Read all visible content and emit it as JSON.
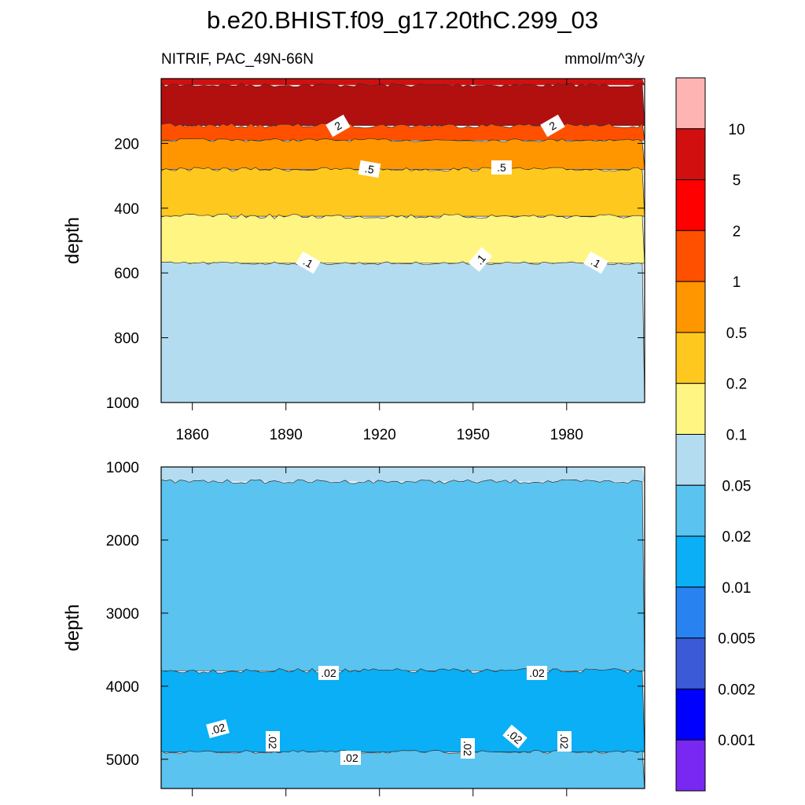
{
  "title": "b.e20.BHIST.f09_g17.20thC.299_03",
  "subtitle_left": "NITRIF, PAC_49N-66N",
  "subtitle_right": "mmol/m^3/y",
  "chart_data": [
    {
      "type": "heatmap",
      "panel": "upper",
      "ylabel": "depth",
      "ylim": [
        1000,
        0
      ],
      "yticks": [
        "200",
        "400",
        "600",
        "800",
        "1000"
      ],
      "xlim": [
        1850,
        2005
      ],
      "xticks": [
        "1860",
        "1890",
        "1920",
        "1950",
        "1980"
      ],
      "contour_levels": [
        {
          "label": "2",
          "depth": 150
        },
        {
          "label": ".5",
          "depth": 280
        },
        {
          "label": ".1",
          "depth": 565
        }
      ],
      "bands": [
        {
          "from": 0,
          "to": 20,
          "color": "#d20f0f",
          "range": "5-10"
        },
        {
          "from": 20,
          "to": 145,
          "color": "#b20f0f",
          "range": "5-10"
        },
        {
          "from": 145,
          "to": 190,
          "color": "#ff5000",
          "range": "1-2"
        },
        {
          "from": 190,
          "to": 280,
          "color": "#ff9600",
          "range": "0.5-1"
        },
        {
          "from": 280,
          "to": 425,
          "color": "#ffc81e",
          "range": "0.2-0.5"
        },
        {
          "from": 425,
          "to": 570,
          "color": "#fff582",
          "range": "0.1-0.2"
        },
        {
          "from": 570,
          "to": 1000,
          "color": "#b4dcf0",
          "range": "0.05-0.1"
        }
      ],
      "contour_labels": [
        "2",
        "2",
        ".5",
        ".5",
        ".1",
        ".1",
        ".1"
      ]
    },
    {
      "type": "heatmap",
      "panel": "lower",
      "ylabel": "depth",
      "ylim": [
        5400,
        1000
      ],
      "yticks": [
        "1000",
        "2000",
        "3000",
        "4000",
        "5000"
      ],
      "xlim": [
        1850,
        2005
      ],
      "bands": [
        {
          "from": 1000,
          "to": 1200,
          "color": "#b4dcf0",
          "range": "0.05-0.1"
        },
        {
          "from": 1200,
          "to": 3790,
          "color": "#5ac3f0",
          "range": "0.02-0.05"
        },
        {
          "from": 3790,
          "to": 4900,
          "color": "#0aaff5",
          "range": "0.01-0.02"
        },
        {
          "from": 4900,
          "to": 5400,
          "color": "#5ac3f0",
          "range": "0.02-0.05"
        }
      ],
      "contour_labels": [
        ".02",
        ".02",
        ".02",
        ".02",
        ".02",
        ".02",
        ".02",
        ".02"
      ]
    }
  ],
  "colorbar": {
    "colors": [
      "#ffb4b4",
      "#d20f0f",
      "#ff0000",
      "#ff5000",
      "#ff9600",
      "#ffc81e",
      "#fff582",
      "#b4dcf0",
      "#5ac3f0",
      "#0aaff5",
      "#2882f0",
      "#3a5ad8",
      "#0000ff",
      "#7828f0"
    ],
    "labels": [
      "10",
      "5",
      "2",
      "1",
      "0.5",
      "0.2",
      "0.1",
      "0.05",
      "0.02",
      "0.01",
      "0.005",
      "0.002",
      "0.001"
    ]
  }
}
